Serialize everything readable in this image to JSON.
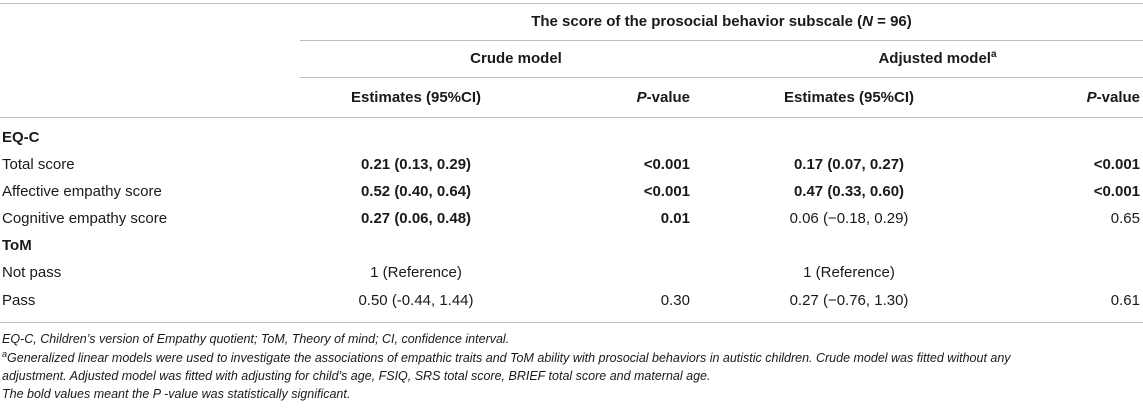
{
  "table": {
    "title_prefix": "The score of the prosocial behavior subscale (",
    "title_n": "N",
    "title_suffix": " = 96)",
    "crude_label": "Crude model",
    "adjusted_label": "Adjusted model",
    "adjusted_sup": "a",
    "col_estimates": "Estimates (95%CI)",
    "col_p_italic": "P",
    "col_p_rest": "-value",
    "groups": [
      {
        "label": "EQ-C",
        "rows": [
          {
            "label": "Total score",
            "crude_est": "0.21 (0.13, 0.29)",
            "crude_p": "<0.001",
            "adj_est": "0.17 (0.07, 0.27)",
            "adj_p": "<0.001"
          },
          {
            "label": "Affective empathy score",
            "crude_est": "0.52 (0.40, 0.64)",
            "crude_p": "<0.001",
            "adj_est": "0.47 (0.33, 0.60)",
            "adj_p": "<0.001"
          },
          {
            "label": "Cognitive empathy score",
            "crude_est": "0.27 (0.06, 0.48)",
            "crude_p": "0.01",
            "adj_est": "0.06 (−0.18, 0.29)",
            "adj_p": "0.65"
          }
        ]
      },
      {
        "label": "ToM",
        "rows": [
          {
            "label": "Not pass",
            "crude_est": "1 (Reference)",
            "crude_p": "",
            "adj_est": "1 (Reference)",
            "adj_p": ""
          },
          {
            "label": "Pass",
            "crude_est": "0.50 (-0.44, 1.44)",
            "crude_p": "0.30",
            "adj_est": "0.27 (−0.76, 1.30)",
            "adj_p": "0.61"
          }
        ]
      }
    ]
  },
  "notes": {
    "abbrev": "EQ-C, Children’s version of Empathy quotient; ToM, Theory of mind; CI, confidence interval.",
    "footnote_a_sup": "a",
    "footnote_a_line1": "Generalized linear models were used to investigate the associations of empathic traits and ToM ability with prosocial behaviors in autistic children. Crude model was fitted without any",
    "footnote_a_line2": "adjustment. Adjusted model was fitted with adjusting for child’s age, FSIQ, SRS total score, BRIEF total score and maternal age.",
    "bold_note": "The bold values meant the P -value was statistically significant."
  }
}
